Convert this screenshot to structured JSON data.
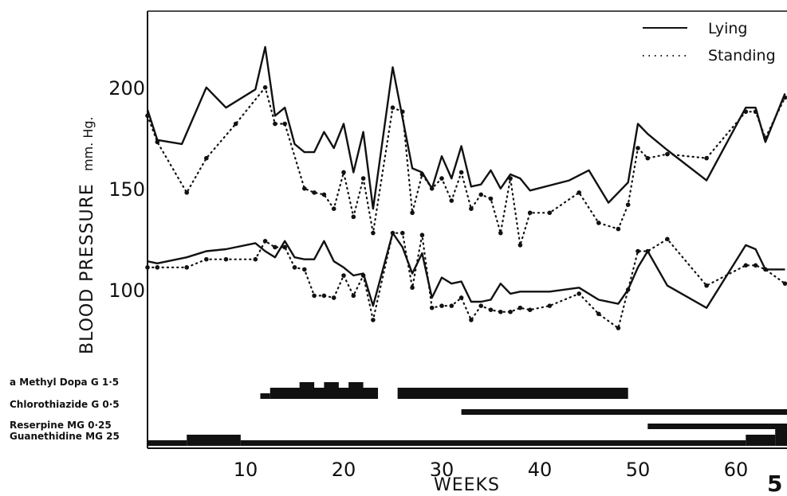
{
  "figure_number": "5",
  "chart_data": {
    "type": "line",
    "xlabel": "WEEKS",
    "ylabel": "BLOOD PRESSURE",
    "ylabel_unit": "mm. Hg.",
    "xlim": [
      0,
      65
    ],
    "ylim": [
      70,
      240
    ],
    "xticks": [
      10,
      20,
      30,
      40,
      50,
      60
    ],
    "yticks": [
      100,
      150,
      200
    ],
    "grid": false,
    "legend": {
      "position": "top-right",
      "entries": [
        {
          "label": "Lying",
          "style": "solid"
        },
        {
          "label": "Standing",
          "style": "dotted"
        }
      ]
    },
    "series": [
      {
        "name": "Lying",
        "measure": "systolic",
        "style": "solid",
        "points": [
          [
            0,
            189
          ],
          [
            1,
            174
          ],
          [
            3.5,
            172
          ],
          [
            6,
            200
          ],
          [
            8,
            190
          ],
          [
            11,
            199
          ],
          [
            12,
            220
          ],
          [
            13,
            186
          ],
          [
            14,
            190
          ],
          [
            15,
            172
          ],
          [
            16,
            168
          ],
          [
            17,
            168
          ],
          [
            18,
            178
          ],
          [
            19,
            170
          ],
          [
            20,
            182
          ],
          [
            21,
            158
          ],
          [
            22,
            178
          ],
          [
            23,
            140
          ],
          [
            25,
            210
          ],
          [
            27,
            160
          ],
          [
            28,
            158
          ],
          [
            29,
            150
          ],
          [
            30,
            166
          ],
          [
            31,
            155
          ],
          [
            32,
            171
          ],
          [
            33,
            151
          ],
          [
            34,
            152
          ],
          [
            35,
            159
          ],
          [
            36,
            150
          ],
          [
            37,
            157
          ],
          [
            38,
            155
          ],
          [
            39,
            149
          ],
          [
            43,
            154
          ],
          [
            45,
            159
          ],
          [
            47,
            143
          ],
          [
            49,
            153
          ],
          [
            50,
            182
          ],
          [
            51,
            177
          ],
          [
            53,
            169
          ],
          [
            57,
            154
          ],
          [
            61,
            190
          ],
          [
            62,
            190
          ],
          [
            63,
            173
          ],
          [
            65,
            197
          ]
        ]
      },
      {
        "name": "Standing",
        "measure": "systolic",
        "style": "dotted",
        "points": [
          [
            0,
            186
          ],
          [
            1,
            173
          ],
          [
            4,
            148
          ],
          [
            6,
            165
          ],
          [
            9,
            182
          ],
          [
            12,
            200
          ],
          [
            13,
            182
          ],
          [
            14,
            182
          ],
          [
            16,
            150
          ],
          [
            17,
            148
          ],
          [
            18,
            147
          ],
          [
            19,
            140
          ],
          [
            20,
            158
          ],
          [
            21,
            136
          ],
          [
            22,
            155
          ],
          [
            23,
            128
          ],
          [
            25,
            190
          ],
          [
            26,
            188
          ],
          [
            27,
            138
          ],
          [
            28,
            157
          ],
          [
            29,
            150
          ],
          [
            30,
            155
          ],
          [
            31,
            144
          ],
          [
            32,
            158
          ],
          [
            33,
            140
          ],
          [
            34,
            147
          ],
          [
            35,
            145
          ],
          [
            36,
            128
          ],
          [
            37,
            155
          ],
          [
            38,
            122
          ],
          [
            39,
            138
          ],
          [
            41,
            138
          ],
          [
            44,
            148
          ],
          [
            46,
            133
          ],
          [
            48,
            130
          ],
          [
            49,
            142
          ],
          [
            50,
            170
          ],
          [
            51,
            165
          ],
          [
            53,
            167
          ],
          [
            57,
            165
          ],
          [
            61,
            188
          ],
          [
            62,
            188
          ],
          [
            63,
            175
          ],
          [
            65,
            195
          ]
        ]
      },
      {
        "name": "Lying",
        "measure": "diastolic",
        "style": "solid",
        "points": [
          [
            0,
            114
          ],
          [
            1,
            113
          ],
          [
            4,
            116
          ],
          [
            6,
            119
          ],
          [
            8,
            120
          ],
          [
            11,
            123
          ],
          [
            12,
            119
          ],
          [
            13,
            116
          ],
          [
            14,
            124
          ],
          [
            15,
            116
          ],
          [
            16,
            115
          ],
          [
            17,
            115
          ],
          [
            18,
            124
          ],
          [
            19,
            114
          ],
          [
            20,
            111
          ],
          [
            21,
            107
          ],
          [
            22,
            108
          ],
          [
            23,
            92
          ],
          [
            25,
            128
          ],
          [
            26,
            121
          ],
          [
            27,
            108
          ],
          [
            28,
            118
          ],
          [
            29,
            96
          ],
          [
            30,
            106
          ],
          [
            31,
            103
          ],
          [
            32,
            104
          ],
          [
            33,
            94
          ],
          [
            34,
            94
          ],
          [
            35,
            95
          ],
          [
            36,
            103
          ],
          [
            37,
            98
          ],
          [
            38,
            99
          ],
          [
            39,
            99
          ],
          [
            41,
            99
          ],
          [
            44,
            101
          ],
          [
            46,
            95
          ],
          [
            48,
            93
          ],
          [
            49,
            100
          ],
          [
            50,
            111
          ],
          [
            51,
            119
          ],
          [
            53,
            102
          ],
          [
            57,
            91
          ],
          [
            61,
            122
          ],
          [
            62,
            120
          ],
          [
            63,
            110
          ],
          [
            65,
            110
          ]
        ]
      },
      {
        "name": "Standing",
        "measure": "diastolic",
        "style": "dotted",
        "points": [
          [
            0,
            111
          ],
          [
            1,
            111
          ],
          [
            4,
            111
          ],
          [
            6,
            115
          ],
          [
            8,
            115
          ],
          [
            11,
            115
          ],
          [
            12,
            124
          ],
          [
            13,
            121
          ],
          [
            14,
            121
          ],
          [
            15,
            111
          ],
          [
            16,
            110
          ],
          [
            17,
            97
          ],
          [
            18,
            97
          ],
          [
            19,
            96
          ],
          [
            20,
            107
          ],
          [
            21,
            97
          ],
          [
            22,
            107
          ],
          [
            23,
            85
          ],
          [
            25,
            128
          ],
          [
            26,
            128
          ],
          [
            27,
            101
          ],
          [
            28,
            127
          ],
          [
            29,
            91
          ],
          [
            30,
            92
          ],
          [
            31,
            92
          ],
          [
            32,
            96
          ],
          [
            33,
            85
          ],
          [
            34,
            92
          ],
          [
            35,
            90
          ],
          [
            36,
            89
          ],
          [
            37,
            89
          ],
          [
            38,
            91
          ],
          [
            39,
            90
          ],
          [
            41,
            92
          ],
          [
            44,
            98
          ],
          [
            46,
            88
          ],
          [
            48,
            81
          ],
          [
            49,
            100
          ],
          [
            50,
            119
          ],
          [
            51,
            119
          ],
          [
            53,
            125
          ],
          [
            57,
            102
          ],
          [
            61,
            112
          ],
          [
            62,
            112
          ],
          [
            63,
            110
          ],
          [
            65,
            103
          ]
        ]
      }
    ],
    "treatments": [
      {
        "label": "a Methyl Dopa G  1·5",
        "bars": [
          [
            11.5,
            12.5,
            1
          ],
          [
            12.5,
            23.5,
            2
          ],
          [
            15.5,
            17,
            3
          ],
          [
            18,
            19.5,
            3
          ],
          [
            20.5,
            22,
            3
          ],
          [
            25.5,
            49,
            2
          ]
        ]
      },
      {
        "label": "Chlorothiazide G  0·5",
        "bars": [
          [
            32,
            66,
            1
          ]
        ]
      },
      {
        "label": "Reserpine   MG  0·25",
        "bars": [
          [
            51,
            66,
            1
          ]
        ]
      },
      {
        "label": "Guanethidine MG  25",
        "bars": [
          [
            0,
            4,
            1
          ],
          [
            4,
            9.5,
            2
          ],
          [
            9.5,
            61,
            1
          ],
          [
            61,
            64,
            2
          ],
          [
            64,
            66,
            3
          ]
        ]
      }
    ]
  }
}
